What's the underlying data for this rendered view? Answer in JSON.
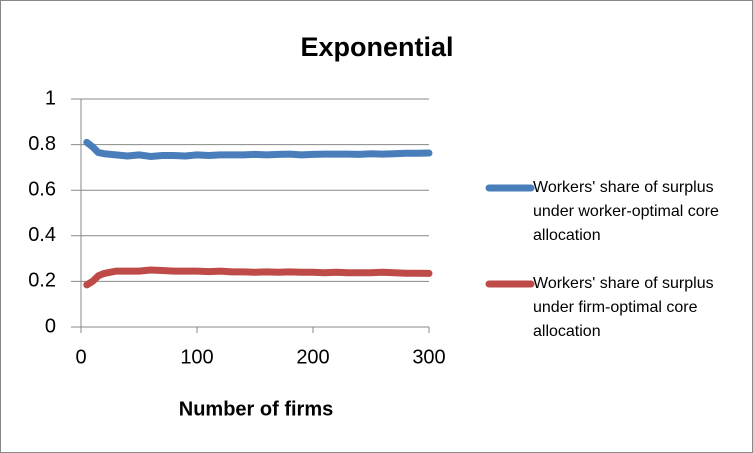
{
  "chart_data": {
    "type": "line",
    "title": "Exponential",
    "x_label": "Number of firms",
    "x": [
      5,
      10,
      15,
      20,
      30,
      40,
      50,
      60,
      70,
      80,
      90,
      100,
      110,
      120,
      130,
      140,
      150,
      160,
      170,
      180,
      190,
      200,
      210,
      220,
      230,
      240,
      250,
      260,
      270,
      280,
      290,
      300
    ],
    "series": [
      {
        "name": "Workers' share of surplus under worker-optimal core allocation",
        "color": "#4a7ebb",
        "values": [
          0.81,
          0.79,
          0.765,
          0.76,
          0.755,
          0.75,
          0.755,
          0.748,
          0.752,
          0.752,
          0.75,
          0.755,
          0.752,
          0.755,
          0.755,
          0.755,
          0.757,
          0.755,
          0.757,
          0.758,
          0.755,
          0.757,
          0.758,
          0.758,
          0.758,
          0.757,
          0.76,
          0.758,
          0.76,
          0.762,
          0.762,
          0.763
        ]
      },
      {
        "name": "Workers' share of surplus under firm-optimal core allocation",
        "color": "#be4b48",
        "values": [
          0.185,
          0.2,
          0.225,
          0.235,
          0.245,
          0.245,
          0.245,
          0.25,
          0.248,
          0.245,
          0.245,
          0.245,
          0.243,
          0.245,
          0.242,
          0.242,
          0.24,
          0.242,
          0.24,
          0.242,
          0.24,
          0.24,
          0.238,
          0.24,
          0.238,
          0.238,
          0.238,
          0.24,
          0.238,
          0.236,
          0.236,
          0.235
        ]
      }
    ],
    "xlim": [
      0,
      300
    ],
    "xticks": [
      0,
      100,
      200,
      300
    ],
    "ylim": [
      0,
      1
    ],
    "yticks": [
      0,
      0.2,
      0.4,
      0.6,
      0.8,
      1
    ],
    "grid": true,
    "legend": "right"
  }
}
